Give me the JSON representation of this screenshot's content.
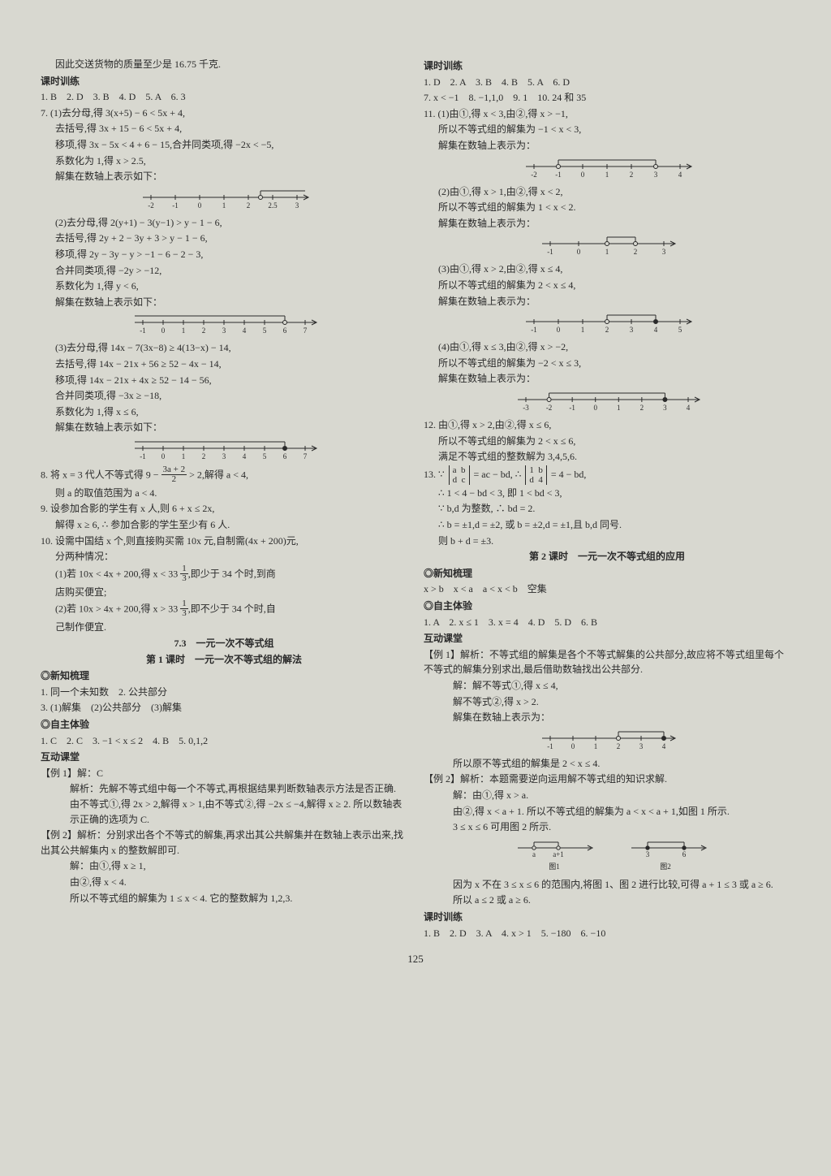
{
  "page_number": "125",
  "colors": {
    "background": "#d8d8d0",
    "text": "#2a2a2a",
    "line": "#2a2a2a"
  },
  "fonts": {
    "body_family": "SimSun",
    "body_size_pt": 9,
    "heading_weight": "bold"
  },
  "left": {
    "p0": "因此交送货物的质量至少是 16.75 千克.",
    "h1": "课时训练",
    "p1": "1. B　2. D　3. B　4. D　5. A　6. 3",
    "p2": "7. (1)去分母,得 3(x+5) − 6 < 5x + 4,",
    "p3": "去括号,得 3x + 15 − 6 < 5x + 4,",
    "p4": "移项,得 3x − 5x < 4 + 6 − 15,合并同类项,得 −2x < −5,",
    "p5": "系数化为 1,得 x > 2.5,",
    "p6": "解集在数轴上表示如下：",
    "nl1": {
      "ticks": [
        "-2",
        "-1",
        "0",
        "1",
        "2",
        "2.5",
        "3"
      ],
      "open_at": 4.5,
      "arrow": true
    },
    "p7": "(2)去分母,得 2(y+1) − 3(y−1) > y − 1 − 6,",
    "p8": "去括号,得 2y + 2 − 3y + 3 > y − 1 − 6,",
    "p9": "移项,得 2y − 3y − y > −1 − 6 − 2 − 3,",
    "p10": "合并同类项,得 −2y > −12,",
    "p11": "系数化为 1,得 y < 6,",
    "p12": "解集在数轴上表示如下：",
    "nl2": {
      "ticks": [
        "-1",
        "0",
        "1",
        "2",
        "3",
        "4",
        "5",
        "6",
        "7"
      ],
      "open_at": 7,
      "arrow": true,
      "dir": "left"
    },
    "p13": "(3)去分母,得 14x − 7(3x−8) ≥ 4(13−x) − 14,",
    "p14": "去括号,得 14x − 21x + 56 ≥ 52 − 4x − 14,",
    "p15": "移项,得 14x − 21x + 4x ≥ 52 − 14 − 56,",
    "p16": "合并同类项,得 −3x ≥ −18,",
    "p17": "系数化为 1,得 x ≤ 6,",
    "p18": "解集在数轴上表示如下：",
    "nl3": {
      "ticks": [
        "-1",
        "0",
        "1",
        "2",
        "3",
        "4",
        "5",
        "6",
        "7"
      ],
      "closed_at": 7,
      "arrow": true,
      "dir": "left"
    },
    "p19a": "8. 将 x = 3 代人不等式得 9 − ",
    "p19frac": {
      "num": "3a + 2",
      "den": "2"
    },
    "p19b": " > 2,解得 a < 4,",
    "p20": "则 a 的取值范围为 a < 4.",
    "p21": "9. 设参加合影的学生有 x 人,则 6 + x ≤ 2x,",
    "p22": "解得 x ≥ 6, ∴ 参加合影的学生至少有 6 人.",
    "p23": "10. 设需中国结 x 个,则直接购买需 10x 元,自制需(4x + 200)元,",
    "p24": "分两种情况：",
    "p25a": "(1)若 10x < 4x + 200,得 x < 33 ",
    "p25frac": {
      "num": "1",
      "den": "3"
    },
    "p25b": ",即少于 34 个时,到商",
    "p26": "店购买便宜;",
    "p27a": "(2)若 10x > 4x + 200,得 x > 33 ",
    "p27frac": {
      "num": "1",
      "den": "3"
    },
    "p27b": ",即不少于 34 个时,自",
    "p28": "己制作便宜.",
    "h2": "7.3　一元一次不等式组",
    "h3": "第 1 课时　一元一次不等式组的解法",
    "h4": "◎新知梳理",
    "p29": "1. 同一个未知数　2. 公共部分",
    "p30": "3. (1)解集　(2)公共部分　(3)解集",
    "h5": "◎自主体验",
    "p31": "1. C　2. C　3. −1 < x ≤ 2　4. B　5. 0,1,2",
    "h6": "互动课堂",
    "p32": "【例 1】解：C",
    "p33": "解析：先解不等式组中每一个不等式,再根据结果判断数轴表示方法是否正确. 由不等式①,得 2x > 2,解得 x > 1,由不等式②,得 −2x ≤ −4,解得 x ≥ 2. 所以数轴表示正确的选项为 C.",
    "p34": "【例 2】解析：分别求出各个不等式的解集,再求出其公共解集并在数轴上表示出来,找出其公共解集内 x 的整数解即可.",
    "p35": "解：由①,得 x ≥ 1,",
    "p36": "由②,得 x < 4.",
    "p37": "所以不等式组的解集为 1 ≤ x < 4. 它的整数解为 1,2,3."
  },
  "right": {
    "h1": "课时训练",
    "p1": "1. D　2. A　3. B　4. B　5. A　6. D",
    "p2": "7. x < −1　8. −1,1,0　9. 1　10. 24 和 35",
    "p3": "11. (1)由①,得 x < 3,由②,得 x > −1,",
    "p4": "所以不等式组的解集为 −1 < x < 3,",
    "p5": "解集在数轴上表示为：",
    "nl1": {
      "ticks": [
        "-2",
        "-1",
        "0",
        "1",
        "2",
        "3",
        "4"
      ],
      "open_a": 1,
      "open_b": 5
    },
    "p6": "(2)由①,得 x > 1,由②,得 x < 2,",
    "p7": "所以不等式组的解集为 1 < x < 2.",
    "p8": "解集在数轴上表示为：",
    "nl2": {
      "ticks": [
        "-1",
        "0",
        "1",
        "2",
        "3"
      ],
      "open_a": 2,
      "open_b": 3
    },
    "p9": "(3)由①,得 x > 2,由②,得 x ≤ 4,",
    "p10": "所以不等式组的解集为 2 < x ≤ 4,",
    "p11": "解集在数轴上表示为：",
    "nl3": {
      "ticks": [
        "-1",
        "0",
        "1",
        "2",
        "3",
        "4",
        "5"
      ],
      "open_a": 3,
      "closed_b": 5
    },
    "p12": "(4)由①,得 x ≤ 3,由②,得 x > −2,",
    "p13": "所以不等式组的解集为 −2 < x ≤ 3,",
    "p14": "解集在数轴上表示为：",
    "nl4": {
      "ticks": [
        "-3",
        "-2",
        "-1",
        "0",
        "1",
        "2",
        "3",
        "4"
      ],
      "open_a": 1,
      "closed_b": 6
    },
    "p15": "12. 由①,得 x > 2,由②,得 x ≤ 6,",
    "p16": "所以不等式组的解集为 2 < x ≤ 6,",
    "p17": "满足不等式组的整数解为 3,4,5,6.",
    "p18a": "13. ∵ ",
    "det1": {
      "r1": "a  b",
      "r2": "d  c"
    },
    "p18b": " = ac − bd, ∴ ",
    "det2": {
      "r1": "1  b",
      "r2": "d  4"
    },
    "p18c": " = 4 − bd,",
    "p19": "∴ 1 < 4 − bd < 3, 即 1 < bd < 3,",
    "p20": "∵ b,d 为整数, ∴ bd = 2.",
    "p21": "∴ b = ±1,d = ±2, 或 b = ±2,d = ±1,且 b,d 同号.",
    "p22": "则 b + d = ±3.",
    "h2": "第 2 课时　一元一次不等式组的应用",
    "h3": "◎新知梳理",
    "p23": "x > b　x < a　a < x < b　空集",
    "h4": "◎自主体验",
    "p24": "1. A　2. x ≤ 1　3. x = 4　4. D　5. D　6. B",
    "h5": "互动课堂",
    "p25": "【例 1】解析：不等式组的解集是各个不等式解集的公共部分,故应将不等式组里每个不等式的解集分别求出,最后借助数轴找出公共部分.",
    "p26": "解：解不等式①,得 x ≤ 4,",
    "p27": "解不等式②,得 x > 2.",
    "p28": "解集在数轴上表示为：",
    "nl5": {
      "ticks": [
        "-1",
        "0",
        "1",
        "2",
        "3",
        "4"
      ],
      "open_a": 3,
      "closed_b": 5
    },
    "p29": "所以原不等式组的解集是 2 < x ≤ 4.",
    "p30": "【例 2】解析：本题需要逆向运用解不等式组的知识求解.",
    "p31": "解：由①,得 x > a.",
    "p32": "由②,得 x < a + 1. 所以不等式组的解集为 a < x < a + 1,如图 1 所示.",
    "p33": "3 ≤ x ≤ 6 可用图 2 所示.",
    "fig": {
      "fig1": {
        "labels": [
          "a",
          "a+1"
        ],
        "caption": "图1"
      },
      "fig2": {
        "labels": [
          "3",
          "6"
        ],
        "caption": "图2"
      }
    },
    "p34": "因为 x 不在 3 ≤ x ≤ 6 的范围内,将图 1、图 2 进行比较,可得 a + 1 ≤ 3 或 a ≥ 6.",
    "p35": "所以 a ≤ 2 或 a ≥ 6.",
    "h6": "课时训练",
    "p36": "1. B　2. D　3. A　4. x > 1　5. −180　6. −10"
  }
}
